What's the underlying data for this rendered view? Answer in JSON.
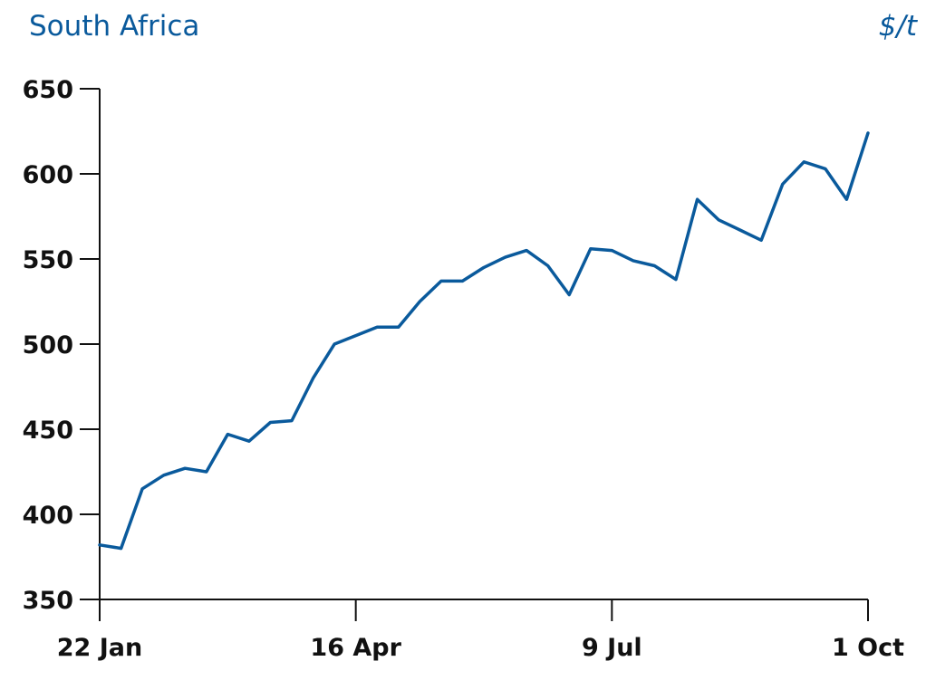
{
  "chart_data": {
    "type": "line",
    "title": "South Africa",
    "unit": "$/t",
    "xlabel": "",
    "ylabel": "",
    "ylim": [
      350,
      650
    ],
    "yticks": [
      350,
      400,
      450,
      500,
      550,
      600,
      650
    ],
    "xlim": [
      "2021-01-22",
      "2021-10-01"
    ],
    "xticks": [
      {
        "date": "2021-01-22",
        "label": "22 Jan"
      },
      {
        "date": "2021-04-16",
        "label": "16 Apr"
      },
      {
        "date": "2021-07-09",
        "label": "9 Jul"
      },
      {
        "date": "2021-10-01",
        "label": "1 Oct"
      }
    ],
    "grid": false,
    "legend": "none",
    "colors": {
      "line": "#0a5a9c",
      "title": "#0a5a9c",
      "axis": "#111111"
    },
    "series": [
      {
        "x": [
          "2021-01-22",
          "2021-01-29",
          "2021-02-05",
          "2021-02-12",
          "2021-02-19",
          "2021-02-26",
          "2021-03-05",
          "2021-03-12",
          "2021-03-19",
          "2021-03-26",
          "2021-04-02",
          "2021-04-09",
          "2021-04-16",
          "2021-04-23",
          "2021-04-30",
          "2021-05-07",
          "2021-05-14",
          "2021-05-21",
          "2021-05-28",
          "2021-06-04",
          "2021-06-11",
          "2021-06-18",
          "2021-06-25",
          "2021-07-02",
          "2021-07-09",
          "2021-07-16",
          "2021-07-23",
          "2021-07-30",
          "2021-08-06",
          "2021-08-13",
          "2021-08-20",
          "2021-08-27",
          "2021-09-03",
          "2021-09-10",
          "2021-09-17",
          "2021-09-24",
          "2021-10-01"
        ],
        "values": [
          382,
          380,
          415,
          423,
          427,
          425,
          447,
          443,
          454,
          455,
          480,
          500,
          505,
          510,
          510,
          525,
          537,
          537,
          545,
          551,
          555,
          546,
          529,
          556,
          555,
          549,
          546,
          538,
          585,
          573,
          567,
          561,
          594,
          607,
          603,
          585,
          624
        ]
      }
    ]
  }
}
